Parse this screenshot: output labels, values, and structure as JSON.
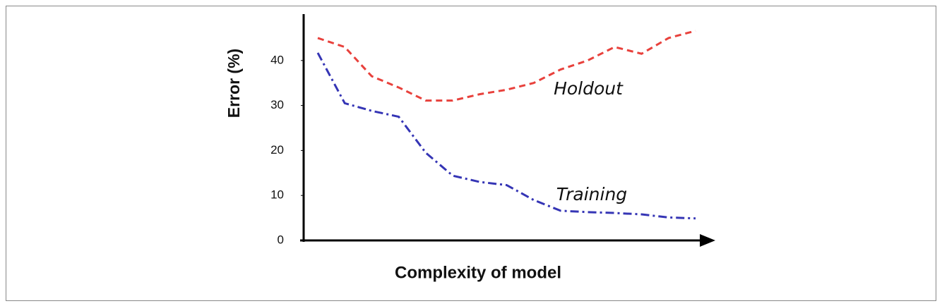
{
  "chart_data": {
    "type": "line",
    "ylabel": "Error (%)",
    "xlabel": "Complexity of model",
    "categories": [
      null,
      null,
      null,
      null,
      null,
      null,
      null,
      null,
      null,
      null,
      null,
      null,
      null,
      null,
      null
    ],
    "series": [
      {
        "name": "Holdout",
        "color": "#e8413c",
        "values": [
          45.0,
          43.0,
          36.5,
          34.0,
          31.1,
          31.1,
          32.5,
          33.5,
          35.0,
          38.0,
          40.0,
          43.0,
          41.5,
          45.0,
          46.6
        ]
      },
      {
        "name": "Training",
        "color": "#3535b5",
        "values": [
          41.7,
          30.5,
          28.8,
          27.5,
          19.5,
          14.4,
          13.0,
          12.3,
          9.0,
          6.6,
          6.3,
          6.1,
          5.8,
          5.1,
          4.9
        ]
      }
    ],
    "ylim": [
      0,
      50
    ],
    "yticks": [
      0,
      10,
      20,
      30,
      40
    ],
    "grid": false
  }
}
